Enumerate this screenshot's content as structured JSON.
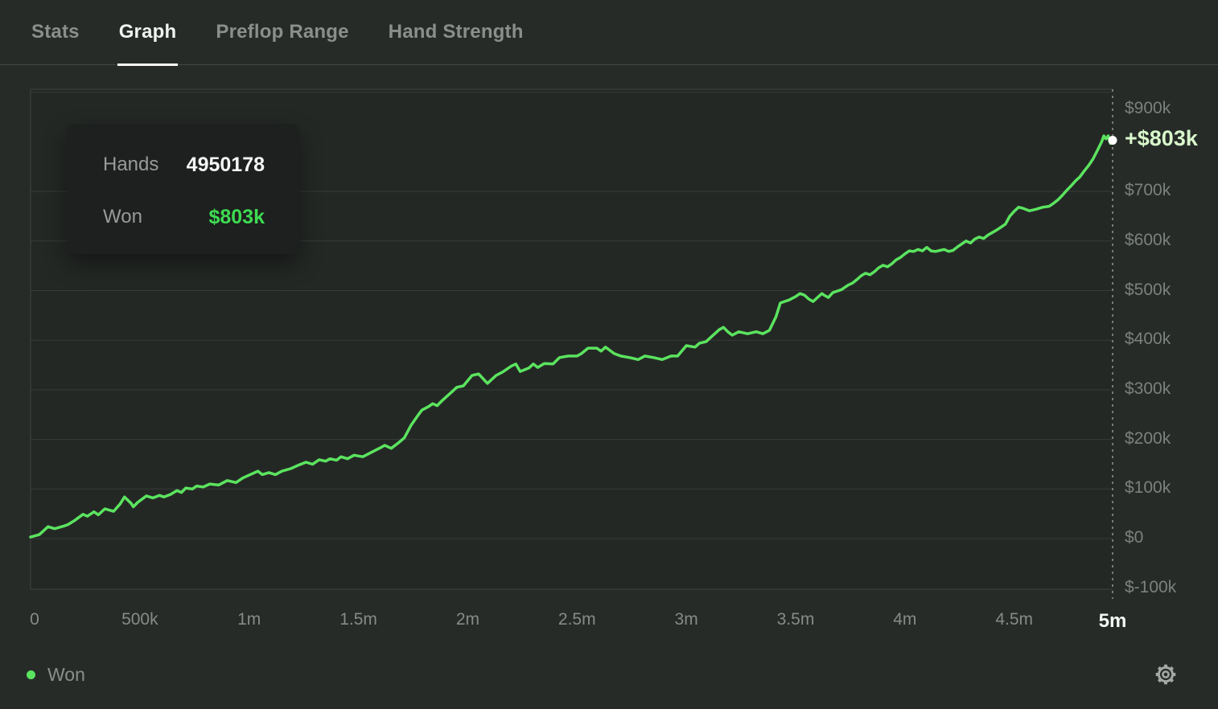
{
  "tabs": {
    "items": [
      {
        "label": "Stats",
        "active": false
      },
      {
        "label": "Graph",
        "active": true
      },
      {
        "label": "Preflop Range",
        "active": false
      },
      {
        "label": "Hand Strength",
        "active": false
      }
    ]
  },
  "tooltip": {
    "rows": [
      {
        "label": "Hands",
        "value": "4950178"
      },
      {
        "label": "Won",
        "value": "$803k"
      }
    ]
  },
  "legend": {
    "label": "Won"
  },
  "icons": {
    "settings": "gear-icon",
    "legend_marker": "green-dot"
  },
  "colors": {
    "background": "#262b28",
    "line_green": "#5be45f",
    "tooltip_value_green": "#3edb52",
    "end_label_green": "#d9f8cb",
    "axis_text": "#7c817d",
    "active_tab": "#f1f3f1",
    "end_dot": "#ffffff"
  },
  "chart_data": {
    "type": "line",
    "title": "",
    "xlabel": "",
    "ylabel": "",
    "grid": "horizontal",
    "legend_position": "bottom-left",
    "x_axis": {
      "unit": "hands",
      "range_m": [
        0,
        4.9502
      ],
      "ticks": [
        {
          "v": 0,
          "label": "0"
        },
        {
          "v": 0.5,
          "label": "500k"
        },
        {
          "v": 1,
          "label": "1m"
        },
        {
          "v": 1.5,
          "label": "1.5m"
        },
        {
          "v": 2,
          "label": "2m"
        },
        {
          "v": 2.5,
          "label": "2.5m"
        },
        {
          "v": 3,
          "label": "3m"
        },
        {
          "v": 3.5,
          "label": "3.5m"
        },
        {
          "v": 4,
          "label": "4m"
        },
        {
          "v": 4.5,
          "label": "4.5m"
        },
        {
          "v": 4.9502,
          "label": "5m",
          "bold": true
        }
      ]
    },
    "y_axis": {
      "unit": "usd_k",
      "range_k": [
        -100,
        906
      ],
      "ticks": [
        {
          "v": 900,
          "label": "$900k"
        },
        {
          "v": 700,
          "label": "$700k"
        },
        {
          "v": 600,
          "label": "$600k"
        },
        {
          "v": 500,
          "label": "$500k"
        },
        {
          "v": 400,
          "label": "$400k"
        },
        {
          "v": 300,
          "label": "$300k"
        },
        {
          "v": 200,
          "label": "$200k"
        },
        {
          "v": 100,
          "label": "$100k"
        },
        {
          "v": 0,
          "label": "$0"
        },
        {
          "v": -100,
          "label": "$-100k"
        }
      ]
    },
    "final_point": {
      "hands": 4950178,
      "won_usd_k": 803,
      "display": "+$803k"
    },
    "series": [
      {
        "name": "Won",
        "color": "#5be45f",
        "points_hands_m_vs_usd_k": [
          [
            0,
            3
          ],
          [
            0.04,
            8
          ],
          [
            0.08,
            24
          ],
          [
            0.11,
            20
          ],
          [
            0.15,
            25
          ],
          [
            0.17,
            28
          ],
          [
            0.2,
            36
          ],
          [
            0.24,
            49
          ],
          [
            0.26,
            45
          ],
          [
            0.29,
            54
          ],
          [
            0.31,
            48
          ],
          [
            0.34,
            60
          ],
          [
            0.38,
            55
          ],
          [
            0.41,
            70
          ],
          [
            0.43,
            84
          ],
          [
            0.46,
            71
          ],
          [
            0.47,
            64
          ],
          [
            0.49,
            73
          ],
          [
            0.53,
            86
          ],
          [
            0.56,
            82
          ],
          [
            0.59,
            87
          ],
          [
            0.61,
            84
          ],
          [
            0.64,
            89
          ],
          [
            0.67,
            97
          ],
          [
            0.69,
            93
          ],
          [
            0.71,
            102
          ],
          [
            0.74,
            100
          ],
          [
            0.76,
            106
          ],
          [
            0.79,
            104
          ],
          [
            0.82,
            110
          ],
          [
            0.86,
            108
          ],
          [
            0.9,
            117
          ],
          [
            0.94,
            113
          ],
          [
            0.97,
            122
          ],
          [
            1.01,
            130
          ],
          [
            1.04,
            136
          ],
          [
            1.06,
            129
          ],
          [
            1.09,
            133
          ],
          [
            1.12,
            129
          ],
          [
            1.15,
            136
          ],
          [
            1.19,
            141
          ],
          [
            1.22,
            147
          ],
          [
            1.26,
            154
          ],
          [
            1.29,
            150
          ],
          [
            1.32,
            159
          ],
          [
            1.35,
            156
          ],
          [
            1.37,
            161
          ],
          [
            1.4,
            158
          ],
          [
            1.42,
            165
          ],
          [
            1.45,
            161
          ],
          [
            1.48,
            168
          ],
          [
            1.52,
            165
          ],
          [
            1.56,
            174
          ],
          [
            1.6,
            183
          ],
          [
            1.62,
            188
          ],
          [
            1.65,
            182
          ],
          [
            1.68,
            192
          ],
          [
            1.71,
            203
          ],
          [
            1.74,
            228
          ],
          [
            1.77,
            247
          ],
          [
            1.79,
            259
          ],
          [
            1.82,
            266
          ],
          [
            1.84,
            272
          ],
          [
            1.86,
            268
          ],
          [
            1.88,
            277
          ],
          [
            1.9,
            285
          ],
          [
            1.93,
            297
          ],
          [
            1.95,
            305
          ],
          [
            1.98,
            308
          ],
          [
            2.02,
            329
          ],
          [
            2.05,
            332
          ],
          [
            2.09,
            313
          ],
          [
            2.13,
            329
          ],
          [
            2.16,
            336
          ],
          [
            2.2,
            348
          ],
          [
            2.22,
            352
          ],
          [
            2.24,
            337
          ],
          [
            2.28,
            344
          ],
          [
            2.3,
            352
          ],
          [
            2.32,
            345
          ],
          [
            2.35,
            353
          ],
          [
            2.39,
            352
          ],
          [
            2.42,
            365
          ],
          [
            2.46,
            368
          ],
          [
            2.5,
            368
          ],
          [
            2.52,
            373
          ],
          [
            2.55,
            384
          ],
          [
            2.59,
            384
          ],
          [
            2.61,
            378
          ],
          [
            2.63,
            386
          ],
          [
            2.67,
            373
          ],
          [
            2.7,
            368
          ],
          [
            2.74,
            365
          ],
          [
            2.78,
            361
          ],
          [
            2.81,
            368
          ],
          [
            2.85,
            365
          ],
          [
            2.89,
            361
          ],
          [
            2.93,
            368
          ],
          [
            2.96,
            368
          ],
          [
            3,
            389
          ],
          [
            3.04,
            386
          ],
          [
            3.06,
            394
          ],
          [
            3.09,
            397
          ],
          [
            3.13,
            413
          ],
          [
            3.15,
            421
          ],
          [
            3.17,
            426
          ],
          [
            3.19,
            417
          ],
          [
            3.21,
            410
          ],
          [
            3.24,
            417
          ],
          [
            3.28,
            413
          ],
          [
            3.32,
            417
          ],
          [
            3.35,
            413
          ],
          [
            3.38,
            420
          ],
          [
            3.41,
            447
          ],
          [
            3.43,
            475
          ],
          [
            3.47,
            481
          ],
          [
            3.5,
            488
          ],
          [
            3.52,
            494
          ],
          [
            3.54,
            491
          ],
          [
            3.56,
            483
          ],
          [
            3.58,
            478
          ],
          [
            3.6,
            486
          ],
          [
            3.62,
            494
          ],
          [
            3.63,
            491
          ],
          [
            3.65,
            486
          ],
          [
            3.67,
            496
          ],
          [
            3.71,
            502
          ],
          [
            3.74,
            511
          ],
          [
            3.76,
            515
          ],
          [
            3.78,
            522
          ],
          [
            3.8,
            530
          ],
          [
            3.82,
            535
          ],
          [
            3.84,
            532
          ],
          [
            3.86,
            538
          ],
          [
            3.88,
            546
          ],
          [
            3.9,
            551
          ],
          [
            3.92,
            548
          ],
          [
            3.94,
            554
          ],
          [
            3.96,
            562
          ],
          [
            3.98,
            567
          ],
          [
            4,
            574
          ],
          [
            4.02,
            580
          ],
          [
            4.04,
            579
          ],
          [
            4.06,
            583
          ],
          [
            4.08,
            580
          ],
          [
            4.1,
            587
          ],
          [
            4.12,
            580
          ],
          [
            4.14,
            579
          ],
          [
            4.16,
            581
          ],
          [
            4.18,
            583
          ],
          [
            4.2,
            579
          ],
          [
            4.22,
            581
          ],
          [
            4.24,
            588
          ],
          [
            4.26,
            594
          ],
          [
            4.28,
            600
          ],
          [
            4.3,
            596
          ],
          [
            4.32,
            604
          ],
          [
            4.34,
            608
          ],
          [
            4.36,
            605
          ],
          [
            4.38,
            612
          ],
          [
            4.4,
            617
          ],
          [
            4.42,
            622
          ],
          [
            4.44,
            628
          ],
          [
            4.46,
            634
          ],
          [
            4.48,
            650
          ],
          [
            4.5,
            660
          ],
          [
            4.52,
            668
          ],
          [
            4.54,
            666
          ],
          [
            4.57,
            661
          ],
          [
            4.6,
            664
          ],
          [
            4.63,
            668
          ],
          [
            4.66,
            670
          ],
          [
            4.68,
            676
          ],
          [
            4.7,
            683
          ],
          [
            4.72,
            692
          ],
          [
            4.74,
            702
          ],
          [
            4.76,
            711
          ],
          [
            4.78,
            721
          ],
          [
            4.8,
            729
          ],
          [
            4.82,
            741
          ],
          [
            4.84,
            752
          ],
          [
            4.86,
            765
          ],
          [
            4.88,
            782
          ],
          [
            4.9,
            800
          ],
          [
            4.91,
            812
          ],
          [
            4.92,
            806
          ],
          [
            4.93,
            812
          ],
          [
            4.94,
            797
          ],
          [
            4.945,
            801
          ],
          [
            4.9502,
            803
          ]
        ]
      }
    ]
  }
}
